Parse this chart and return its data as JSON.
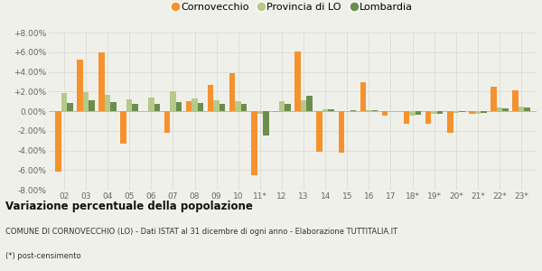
{
  "years": [
    "02",
    "03",
    "04",
    "05",
    "06",
    "07",
    "08",
    "09",
    "10",
    "11*",
    "12",
    "13",
    "14",
    "15",
    "16",
    "17",
    "18*",
    "19*",
    "20*",
    "21*",
    "22*",
    "23*"
  ],
  "cornovecchio": [
    -6.2,
    5.2,
    6.0,
    -3.3,
    0.0,
    -2.2,
    1.0,
    2.7,
    3.9,
    -6.5,
    -0.1,
    6.1,
    -4.1,
    -4.2,
    2.9,
    -0.5,
    -1.3,
    -1.3,
    -2.2,
    -0.3,
    2.5,
    2.1
  ],
  "provincia_lo": [
    1.8,
    1.9,
    1.7,
    1.2,
    1.4,
    2.0,
    1.3,
    1.1,
    1.0,
    -0.3,
    1.0,
    1.1,
    0.2,
    0.0,
    0.1,
    0.0,
    -0.5,
    -0.3,
    -0.2,
    -0.3,
    0.4,
    0.5
  ],
  "lombardia": [
    0.8,
    1.1,
    0.9,
    0.7,
    0.7,
    0.9,
    0.8,
    0.7,
    0.7,
    -2.5,
    0.7,
    1.6,
    0.2,
    0.1,
    0.1,
    0.0,
    -0.4,
    -0.3,
    -0.1,
    -0.2,
    0.3,
    0.4
  ],
  "color_cornovecchio": "#f5922f",
  "color_provincia": "#b5c98a",
  "color_lombardia": "#6b8e4e",
  "bg_color": "#f0f0ea",
  "ylim_min": -8.0,
  "ylim_max": 8.0,
  "yticks": [
    -8.0,
    -6.0,
    -4.0,
    -2.0,
    0.0,
    2.0,
    4.0,
    6.0,
    8.0
  ],
  "title_bold": "Variazione percentuale della popolazione",
  "subtitle": "COMUNE DI CORNOVECCHIO (LO) - Dati ISTAT al 31 dicembre di ogni anno - Elaborazione TUTTITALIA.IT",
  "footnote": "(*) post-censimento",
  "bar_width": 0.27
}
